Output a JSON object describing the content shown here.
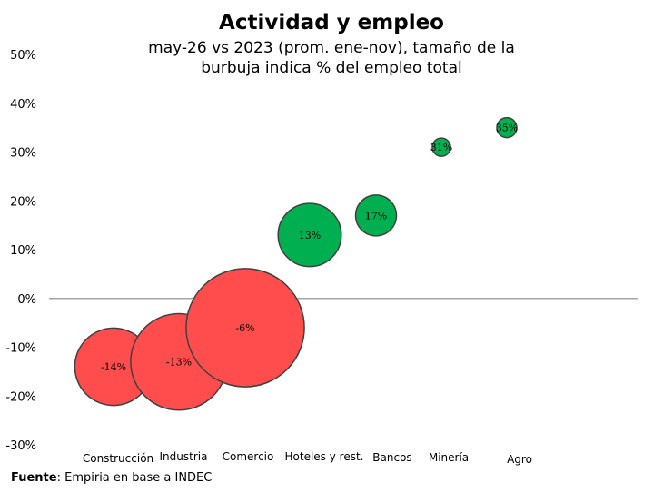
{
  "chart_data": {
    "type": "scatter",
    "title": "Actividad y empleo",
    "subtitle": "may-26 vs 2023 (prom. ene-nov), tamaño de la burbuja indica % del empleo total",
    "ylim": [
      -30,
      50
    ],
    "yticks": [
      "50%",
      "40%",
      "30%",
      "20%",
      "10%",
      "0%",
      "-10%",
      "-20%",
      "-30%"
    ],
    "ytick_values": [
      50,
      40,
      30,
      20,
      10,
      0,
      -10,
      -20,
      -30
    ],
    "grid": false,
    "points": [
      {
        "category": "Construcción",
        "value": -14,
        "label": "-14%",
        "size": 9
      },
      {
        "category": "Industria",
        "value": -13,
        "label": "-13%",
        "size": 14
      },
      {
        "category": "Comercio",
        "value": -6,
        "label": "-6%",
        "size": 21
      },
      {
        "category": "Hoteles y rest.",
        "value": 13,
        "label": "13%",
        "size": 6
      },
      {
        "category": "Bancos",
        "value": 17,
        "label": "17%",
        "size": 2.5
      },
      {
        "category": "Minería",
        "value": 31,
        "label": "31%",
        "size": 0.5
      },
      {
        "category": "Agro",
        "value": 35,
        "label": "35%",
        "size": 0.6
      }
    ],
    "colors": {
      "negative": "#ff4d4d",
      "positive": "#00b050",
      "outline": "#404040",
      "axis": "#a6a6a6"
    }
  },
  "source": {
    "label": "Fuente",
    "text": ": Empiria en base a INDEC"
  }
}
